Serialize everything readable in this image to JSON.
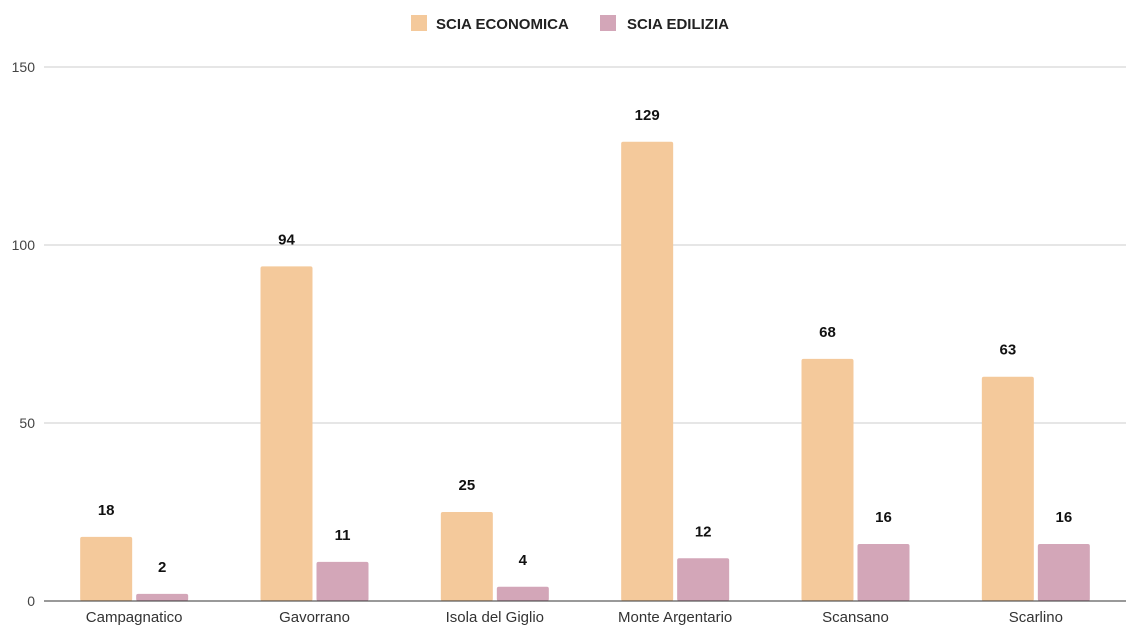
{
  "chart_data": {
    "type": "bar",
    "title": "",
    "xlabel": "",
    "ylabel": "",
    "categories": [
      "Campagnatico",
      "Gavorrano",
      "Isola del Giglio",
      "Monte Argentario",
      "Scansano",
      "Scarlino"
    ],
    "series": [
      {
        "name": "SCIA ECONOMICA",
        "color": "#f4c99b",
        "values": [
          18,
          94,
          25,
          129,
          68,
          63
        ]
      },
      {
        "name": "SCIA EDILIZIA",
        "color": "#d3a6b8",
        "values": [
          2,
          11,
          4,
          12,
          16,
          16
        ]
      }
    ],
    "ylim": [
      0,
      150
    ],
    "yticks": [
      "0",
      "50",
      "100",
      "150"
    ],
    "grid": true,
    "legend_position": "top-center",
    "data_labels": true
  }
}
